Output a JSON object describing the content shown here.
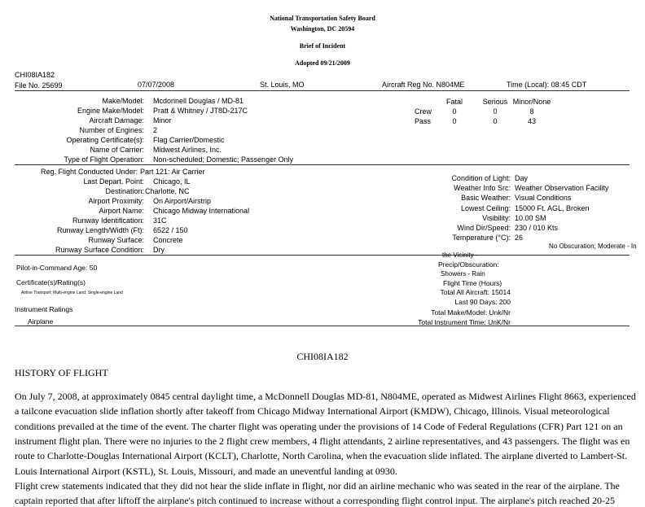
{
  "header": {
    "agency": "National Transportation Safety Board",
    "address": "Washington, DC 20594",
    "doc_type": "Brief of Incident",
    "adopted": "Adopted 09/21/2009"
  },
  "case": {
    "id": "CHI08IA182",
    "file_no": "File No. 25699",
    "date": "07/07/2008",
    "location": "St. Louis, MO",
    "reg_no": "Aircraft Reg No. N804ME",
    "time": "Time (Local): 08:45 CDT"
  },
  "aircraft": [
    {
      "label": "Make/Model:",
      "value": "Mcdonnell Douglas / MD-81"
    },
    {
      "label": "Engine Make/Model:",
      "value": "Pratt & Whitney / JT8D-217C"
    },
    {
      "label": "Aircraft Damage:",
      "value": "Minor"
    },
    {
      "label": "Number of Engines:",
      "value": "2"
    },
    {
      "label": "Operating Certificate(s):",
      "value": "Flag Carrier/Domestic"
    },
    {
      "label": "Name of Carrier:",
      "value": "Midwest Airlines, Inc."
    },
    {
      "label": "Type of Flight Operation:",
      "value": "Non-scheduled; Domestic; Passenger Only"
    }
  ],
  "injuries": {
    "columns": [
      "Fatal",
      "Serious",
      "Minor/None"
    ],
    "rows": [
      {
        "label": "Crew",
        "values": [
          "0",
          "0",
          "8"
        ]
      },
      {
        "label": "Pass",
        "values": [
          "0",
          "0",
          "43"
        ]
      }
    ]
  },
  "flight": [
    {
      "label": "Reg. Flight Conducted Under:",
      "value": "Part 121: Air Carrier"
    },
    {
      "label": "Last Depart. Point:",
      "value": "Chicago, IL"
    },
    {
      "label": "Destination:",
      "value": "Charlotte, NC"
    },
    {
      "label": "Airport Proximity:",
      "value": "On Airport/Airstrip"
    },
    {
      "label": "Airport Name:",
      "value": "Chicago Midway International"
    },
    {
      "label": "Runway Identification:",
      "value": "31C"
    },
    {
      "label": "Runway Length/Width (Ft):",
      "value": "6522 / 150"
    },
    {
      "label": "Runway Surface:",
      "value": "Concrete"
    },
    {
      "label": "Runway Surface Condition:",
      "value": "Dry"
    }
  ],
  "weather": [
    {
      "label": "Condition of Light:",
      "value": "Day"
    },
    {
      "label": "Weather Info Src:",
      "value": "Weather Observation Facility"
    },
    {
      "label": "Basic Weather:",
      "value": "Visual Conditions"
    },
    {
      "label": "Lowest Ceiling:",
      "value": "15000 Ft. AGL, Broken"
    },
    {
      "label": "Visibility:",
      "value": "10.00 SM"
    },
    {
      "label": "Wind Dir/Speed:",
      "value": "230 / 010 Kts"
    },
    {
      "label": "Temperature (°C):",
      "value": "26"
    }
  ],
  "precip": {
    "value_part1": "No Obscuration; Moderate - In",
    "value_part2": "the Vicinity -",
    "label": "Precip/Obscuration:",
    "value_part3": "Showers - Rain"
  },
  "pilot": {
    "age": "Pilot-in-Command Age: 50",
    "cert_label": "Certificate(s)/Rating(s)",
    "cert_value": "Airline Transport; Multi-engine Land; Single-engine Land",
    "instr_label": "Instrument Ratings",
    "instr_value": "Airplane"
  },
  "flight_time": {
    "title": "Flight Time (Hours)",
    "items": [
      "Total All Aircraft: 15014",
      "Last 90 Days: 200",
      "Total Make/Model: Unk/Nr",
      "Total Instrument Time: UnK/Nr"
    ]
  },
  "narrative": {
    "case_id": "CHI08IA182",
    "section": "HISTORY OF FLIGHT",
    "paragraphs": [
      [
        "On July 7, 2008, at approximately 0845 central daylight time, a McDonnell Douglas MD-81, N804ME, operated as Midwest Airlines Flight 8663, experienced",
        "a tailcone evacuation slide inflation shortly after takeoff from Chicago Midway International Airport (KMDW), Chicago, Illinois. Visual meteorological",
        "conditions prevailed at the time of the event. The charter flight was operating under the provisions of 14 Code of Federal Regulations (CFR) Part 121 on an",
        "instrument flight plan. There were no injuries to the 2 flight crew members, 4 flight attendants, 2 airline representatives, and 43 passengers. The flight was en",
        "route to Charlotte-Douglas International Airport (KCLT), Charlotte, North Carolina, when the evacuation slide inflated. The airplane diverted to Lambert-St.",
        "Louis International Airport (KSTL), St. Louis, Missouri, and made an uneventful landing at 0930."
      ],
      [
        "Flight crew statements indicated that they did not hear the slide inflate in flight, nor did an airline mechanic who was seated in the rear of the airplane. The",
        "captain reported that after liftoff the airplane's pitch continued to increase without a corresponding flight control input. The airplane's pitch reached 20-25"
      ]
    ]
  }
}
